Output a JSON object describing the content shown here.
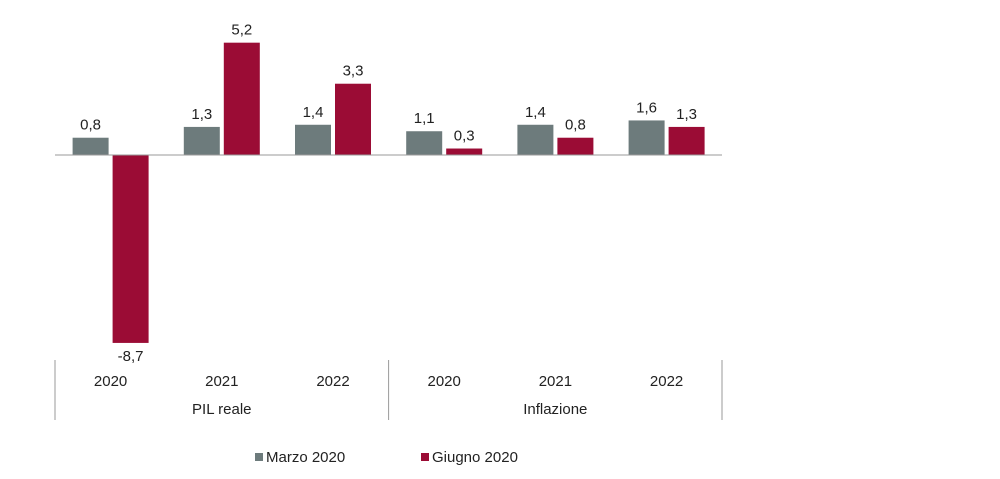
{
  "chart_data": {
    "type": "bar",
    "groups": [
      {
        "label": "PIL reale",
        "categories": [
          "2020",
          "2021",
          "2022"
        ]
      },
      {
        "label": "Inflazione",
        "categories": [
          "2020",
          "2021",
          "2022"
        ]
      }
    ],
    "series": [
      {
        "name": "Marzo 2020",
        "color": "#6d7b7c",
        "values": [
          0.8,
          1.3,
          1.4,
          1.1,
          1.4,
          1.6
        ],
        "labels": [
          "0,8",
          "1,3",
          "1,4",
          "1,1",
          "1,4",
          "1,6"
        ]
      },
      {
        "name": "Giugno 2020",
        "color": "#9b0c35",
        "values": [
          -8.7,
          5.2,
          3.3,
          0.3,
          0.8,
          1.3
        ],
        "labels": [
          "-8,7",
          "5,2",
          "3,3",
          "0,3",
          "0,8",
          "1,3"
        ]
      }
    ],
    "title": "",
    "xlabel": "",
    "ylabel": "",
    "ylim": [
      -8.7,
      5.2
    ],
    "grid": false,
    "legend": "bottom"
  }
}
